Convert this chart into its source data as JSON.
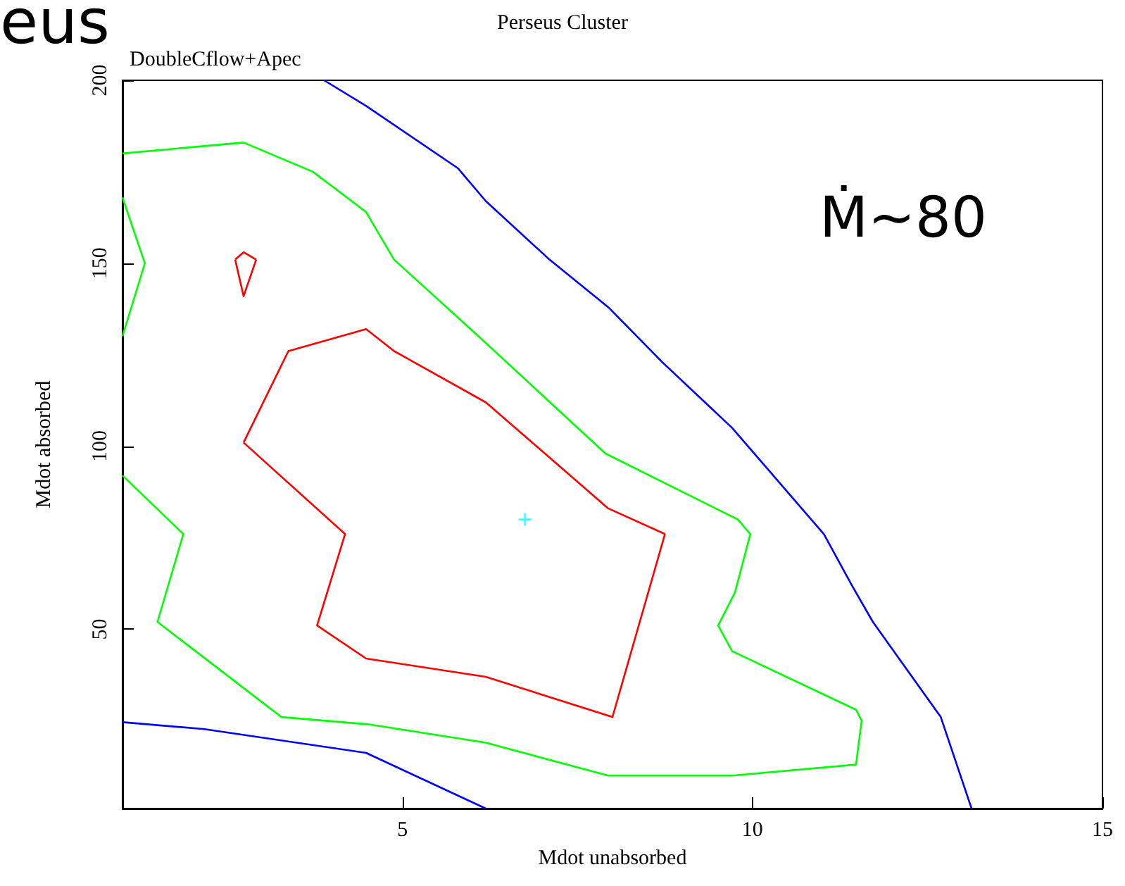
{
  "chart_data": {
    "type": "line",
    "title": "Perseus Cluster",
    "subtitle": "DoubleCflow+Apec",
    "xlabel": "Mdot unabsorbed",
    "ylabel": "Mdot absorbed",
    "annotations": [
      "eus",
      "Ṁ~80"
    ],
    "xlim": [
      1,
      15
    ],
    "ylim": [
      1,
      200
    ],
    "xticks": [
      5,
      10,
      15
    ],
    "yticks": [
      50,
      100,
      150,
      200
    ],
    "grid": false,
    "marker": "none",
    "line_style": "solid",
    "series": [
      {
        "color": "#0000ff",
        "x": [
          3.88,
          4.48,
          5.79,
          6.19,
          7.1,
          7.94,
          8.71,
          9.71,
          11.02,
          11.42,
          11.72,
          12.69,
          13.13
        ],
        "values": [
          200,
          193,
          176,
          167,
          151,
          138,
          123,
          105,
          76,
          62,
          52,
          26,
          1
        ]
      },
      {
        "color": "#0000ff",
        "x": [
          1,
          2.17,
          4.48,
          6.19
        ],
        "values": [
          24.6,
          22.7,
          16.2,
          1
        ]
      },
      {
        "color": "#00ff00",
        "x": [
          1,
          2.73,
          3.72,
          4.48,
          4.88,
          6.09,
          7.9,
          9.79,
          9.97,
          9.75,
          9.51,
          9.71,
          11.48,
          11.56,
          11.48,
          9.71,
          7.94,
          6.19,
          4.52,
          3.27,
          1.5,
          1.87,
          1
        ],
        "values": [
          180,
          183,
          175,
          164,
          151,
          130,
          98,
          80,
          76,
          60,
          51,
          44,
          28,
          25,
          13,
          10,
          10,
          19,
          24,
          26,
          52,
          76,
          92
        ]
      },
      {
        "color": "#00ff00",
        "x": [
          1,
          1.32,
          1
        ],
        "values": [
          168,
          150,
          130
        ]
      },
      {
        "color": "#ff0000",
        "x": [
          2.73,
          3.37,
          4.48,
          4.88,
          6.19,
          7.94,
          8.75
        ],
        "values": [
          101,
          126,
          132,
          126,
          112,
          83,
          76
        ]
      },
      {
        "color": "#ff0000",
        "x": [
          8.75,
          8.0,
          6.19,
          4.48,
          3.78,
          4.18,
          2.73
        ],
        "values": [
          76,
          26,
          37,
          42,
          51,
          76,
          101
        ]
      },
      {
        "color": "#ff0000",
        "x": [
          2.61,
          2.73,
          2.91
        ],
        "values": [
          151,
          153,
          151
        ]
      },
      {
        "color": "#ff0000",
        "x": [
          2.91,
          2.73,
          2.61
        ],
        "values": [
          151,
          141,
          151
        ]
      },
      {
        "type": "scatter",
        "marker": "cross",
        "color": "#00ffff",
        "x": [
          6.75
        ],
        "values": [
          80
        ]
      }
    ]
  }
}
